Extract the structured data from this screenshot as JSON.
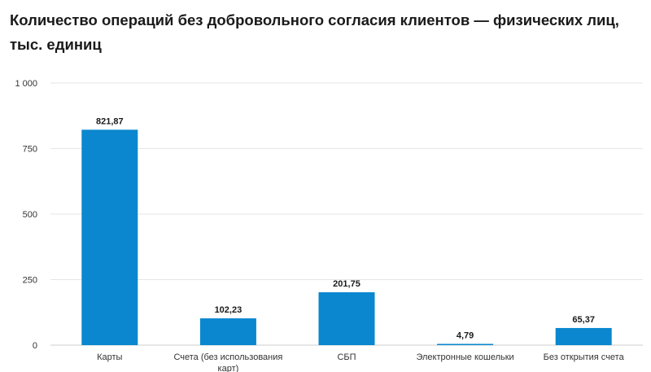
{
  "chart_data": {
    "type": "bar",
    "title": "Количество операций без добровольного согласия клиентов — физических лиц, тыс. единиц",
    "categories": [
      [
        "Карты"
      ],
      [
        "Счета (без использования",
        "карт)"
      ],
      [
        "СБП"
      ],
      [
        "Электронные кошельки"
      ],
      [
        "Без открытия счета"
      ]
    ],
    "values": [
      821.87,
      102.23,
      201.75,
      4.79,
      65.37
    ],
    "value_labels": [
      "821,87",
      "102,23",
      "201,75",
      "4,79",
      "65,37"
    ],
    "ylim": [
      0,
      1000
    ],
    "yticks": [
      0,
      250,
      500,
      750,
      1000
    ],
    "ytick_labels": [
      "0",
      "250",
      "500",
      "750",
      "1 000"
    ],
    "xlabel": "",
    "ylabel": "",
    "bar_color": "#0a87cf",
    "grid": true,
    "grid_color": "#e6e6e6",
    "legend": "none"
  }
}
